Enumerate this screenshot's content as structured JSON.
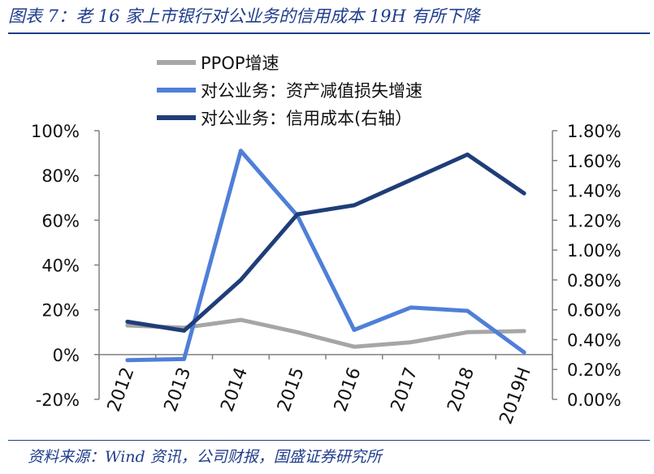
{
  "title": "图表 7：老 16 家上市银行对公业务的信用成本 19H 有所下降",
  "source": "资料来源：Wind 资讯，公司财报，国盛证券研究所",
  "chart_data": {
    "type": "line",
    "categories": [
      "2012",
      "2013",
      "2014",
      "2015",
      "2016",
      "2017",
      "2018",
      "2019H"
    ],
    "series": [
      {
        "name": "PPOP增速",
        "axis": "left",
        "color": "#a6a6a6",
        "values": [
          13,
          12,
          15.5,
          10,
          3.5,
          5.5,
          10,
          10.5
        ]
      },
      {
        "name": "对公业务：资产减值损失增速",
        "axis": "left",
        "color": "#4f7fd8",
        "values": [
          -2.5,
          -2,
          91,
          62,
          11,
          21,
          19.5,
          1
        ]
      },
      {
        "name": "对公业务：信用成本(右轴）",
        "axis": "right",
        "color": "#1f3d78",
        "values": [
          0.52,
          0.46,
          0.8,
          1.24,
          1.3,
          1.47,
          1.64,
          1.38
        ]
      }
    ],
    "left_axis": {
      "ylim": [
        -20,
        100
      ],
      "ticks": [
        "-20%",
        "0%",
        "20%",
        "40%",
        "60%",
        "80%",
        "100%"
      ]
    },
    "right_axis": {
      "ylim": [
        0,
        1.8
      ],
      "ticks": [
        "0.00%",
        "0.20%",
        "0.40%",
        "0.60%",
        "0.80%",
        "1.00%",
        "1.20%",
        "1.40%",
        "1.60%",
        "1.80%"
      ]
    },
    "legend_position": "top",
    "grid": false
  }
}
